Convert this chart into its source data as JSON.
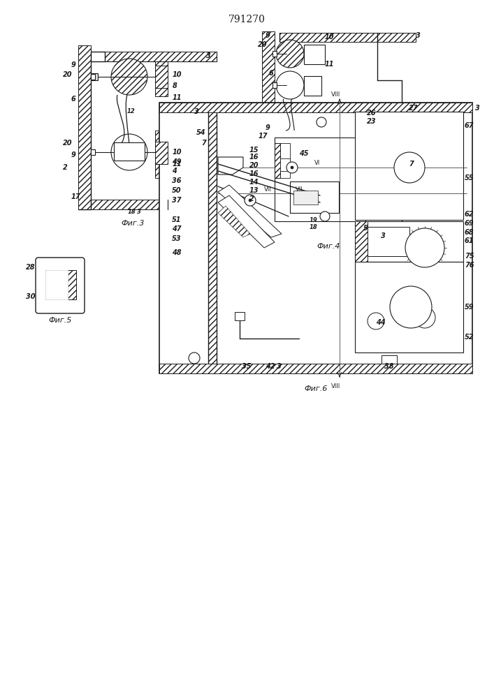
{
  "title": "791270",
  "background": "#ffffff",
  "lc": "#1a1a1a",
  "fig3_caption": "Фиг.3",
  "fig4_caption": "Фиг.4",
  "fig5_caption": "Фиг.5",
  "fig6_caption": "Фиг.6"
}
